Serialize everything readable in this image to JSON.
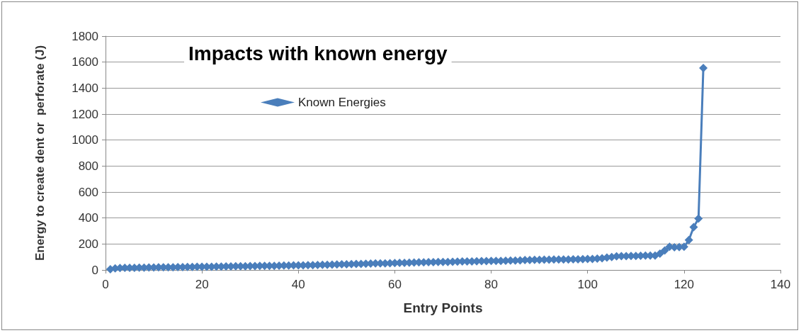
{
  "chart_data": {
    "type": "line",
    "title": "Impacts with known energy",
    "xlabel": "Entry Points",
    "ylabel": "Energy to create dent or  perforate (J)",
    "x": [
      1,
      2,
      3,
      4,
      5,
      6,
      7,
      8,
      9,
      10,
      11,
      12,
      13,
      14,
      15,
      16,
      17,
      18,
      19,
      20,
      21,
      22,
      23,
      24,
      25,
      26,
      27,
      28,
      29,
      30,
      31,
      32,
      33,
      34,
      35,
      36,
      37,
      38,
      39,
      40,
      41,
      42,
      43,
      44,
      45,
      46,
      47,
      48,
      49,
      50,
      51,
      52,
      53,
      54,
      55,
      56,
      57,
      58,
      59,
      60,
      61,
      62,
      63,
      64,
      65,
      66,
      67,
      68,
      69,
      70,
      71,
      72,
      73,
      74,
      75,
      76,
      77,
      78,
      79,
      80,
      81,
      82,
      83,
      84,
      85,
      86,
      87,
      88,
      89,
      90,
      91,
      92,
      93,
      94,
      95,
      96,
      97,
      98,
      99,
      100,
      101,
      102,
      103,
      104,
      105,
      106,
      107,
      108,
      109,
      110,
      111,
      112,
      113,
      114,
      115,
      116,
      117,
      118,
      119,
      120,
      121,
      122,
      123,
      124
    ],
    "series": [
      {
        "name": "Known Energies",
        "color": "#4a7ebb",
        "values": [
          5,
          12,
          15,
          16,
          17,
          17,
          18,
          18,
          19,
          19,
          20,
          20,
          21,
          21,
          22,
          22,
          23,
          23,
          24,
          24,
          25,
          25,
          26,
          26,
          27,
          27,
          28,
          28,
          29,
          30,
          30,
          31,
          31,
          32,
          32,
          33,
          34,
          34,
          35,
          35,
          36,
          37,
          37,
          38,
          39,
          40,
          41,
          42,
          43,
          44,
          45,
          46,
          47,
          48,
          49,
          50,
          50,
          51,
          52,
          53,
          54,
          55,
          56,
          57,
          58,
          59,
          60,
          60,
          61,
          62,
          62,
          63,
          64,
          65,
          65,
          66,
          67,
          68,
          68,
          69,
          70,
          70,
          71,
          72,
          72,
          73,
          76,
          77,
          78,
          78,
          79,
          79,
          80,
          80,
          81,
          81,
          82,
          82,
          83,
          84,
          85,
          87,
          90,
          95,
          100,
          105,
          106,
          107,
          108,
          108,
          109,
          110,
          110,
          111,
          125,
          150,
          178,
          175,
          176,
          178,
          230,
          330,
          395,
          1555
        ]
      }
    ],
    "xlim": [
      0,
      140
    ],
    "xticks": [
      0,
      20,
      40,
      60,
      80,
      100,
      120,
      140
    ],
    "ylim": [
      0,
      1800
    ],
    "yticks": [
      0,
      200,
      400,
      600,
      800,
      1000,
      1200,
      1400,
      1600,
      1800
    ],
    "grid": "y",
    "legend": "top left",
    "marker": "diamond",
    "line_style": "solid"
  }
}
